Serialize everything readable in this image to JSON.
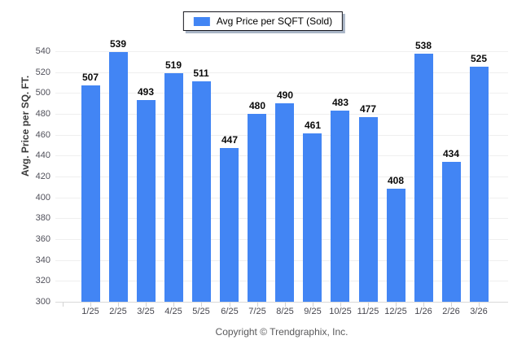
{
  "legend": {
    "label": "Avg Price per SQFT (Sold)",
    "swatch_color": "#4285f4"
  },
  "footer": {
    "copyright": "Copyright © Trendgraphix, Inc."
  },
  "chart_data": {
    "type": "bar",
    "title": "",
    "categories": [
      "1/25",
      "2/25",
      "3/25",
      "4/25",
      "5/25",
      "6/25",
      "7/25",
      "8/25",
      "9/25",
      "10/25",
      "11/25",
      "12/25",
      "1/26",
      "2/26",
      "3/26"
    ],
    "values": [
      507,
      539,
      493,
      519,
      511,
      447,
      480,
      490,
      461,
      483,
      477,
      408,
      538,
      434,
      525
    ],
    "series_name": "Avg Price per SQFT (Sold)",
    "xlabel": "",
    "ylabel": "Avg. Price per SQ. FT.",
    "ylim": [
      300,
      540
    ],
    "ytick_step": 20,
    "bar_color": "#4285f4",
    "grid": true,
    "legend_position": "top",
    "value_labels": true
  }
}
